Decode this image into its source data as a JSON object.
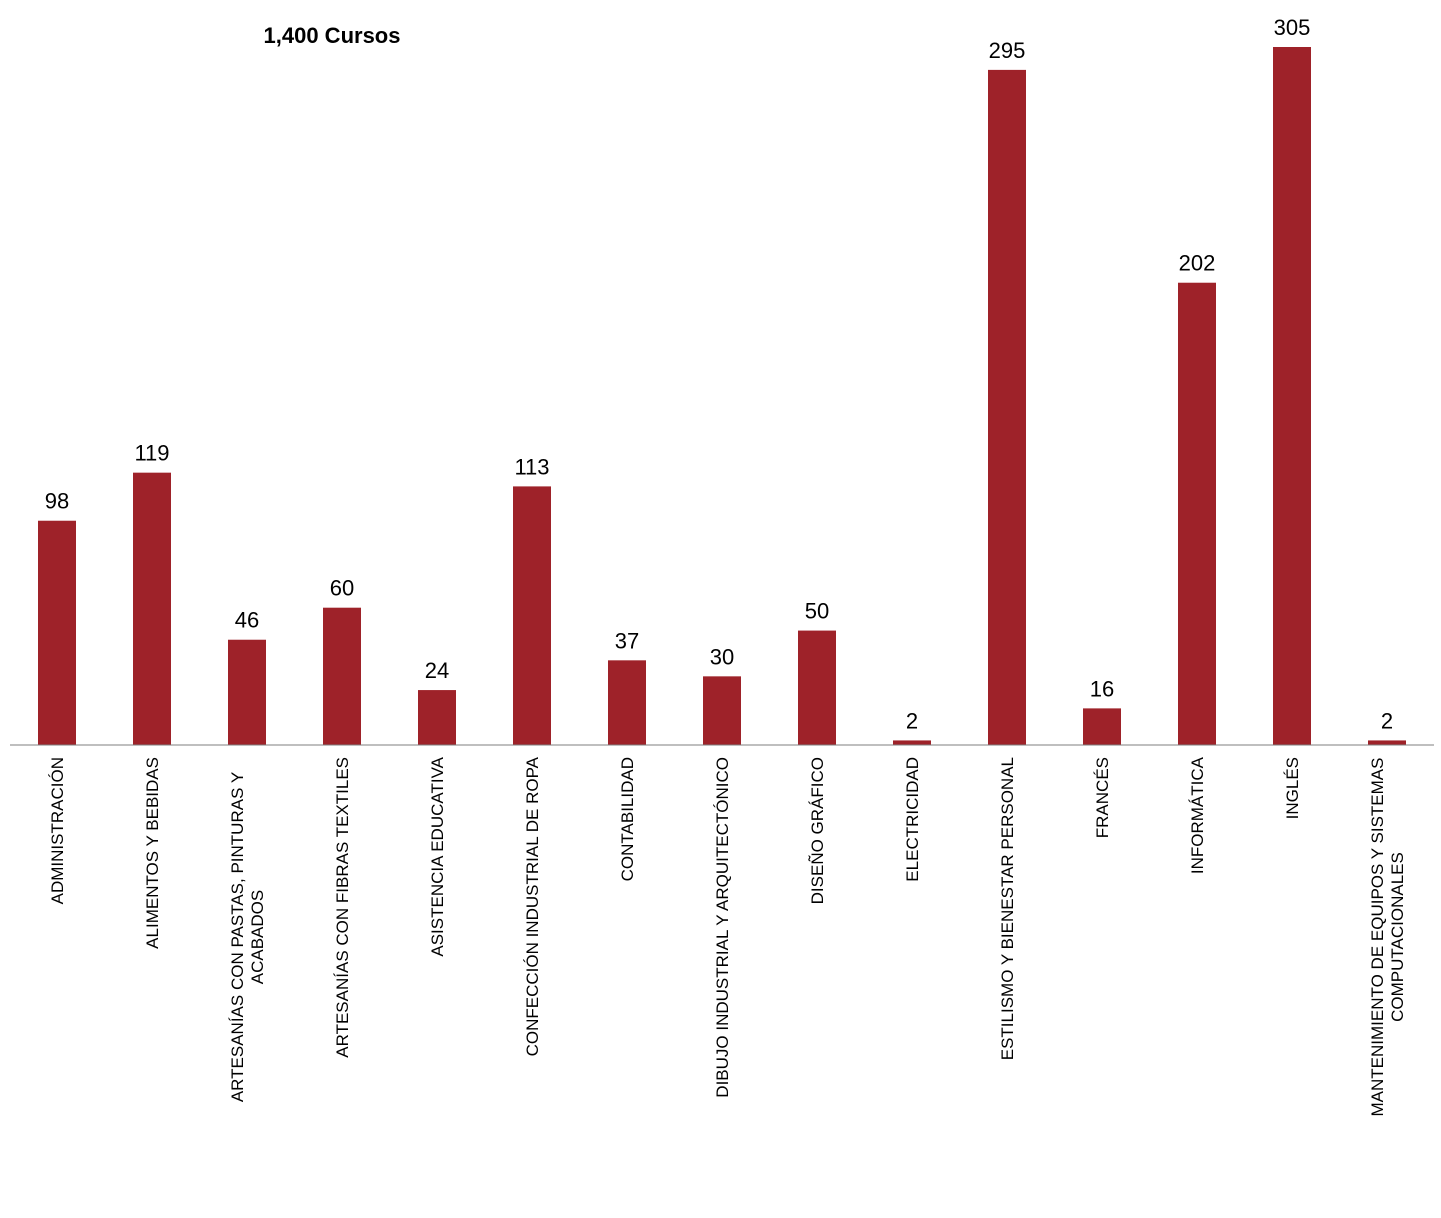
{
  "chart_data": {
    "type": "bar",
    "title": "",
    "xlabel": "",
    "ylabel": "",
    "annotation": "1,400 Cursos",
    "bar_color": "#9e2229",
    "ylim": [
      0,
      320
    ],
    "grid": false,
    "categories": [
      "ADMINISTRACIÓN",
      "ALIMENTOS Y BEBIDAS",
      "ARTESANÍAS CON PASTAS, PINTURAS Y ACABADOS",
      "ARTESANÍAS CON FIBRAS TEXTILES",
      "ASISTENCIA EDUCATIVA",
      "CONFECCIÓN INDUSTRIAL DE ROPA",
      "CONTABILIDAD",
      "DIBUJO INDUSTRIAL Y ARQUITECTÓNICO",
      "DISEÑO GRÁFICO",
      "ELECTRICIDAD",
      "ESTILISMO Y BIENESTAR PERSONAL",
      "FRANCÉS",
      "INFORMÁTICA",
      "INGLÉS",
      "MANTENIMIENTO DE EQUIPOS Y SISTEMAS COMPUTACIONALES"
    ],
    "values": [
      98,
      119,
      46,
      60,
      24,
      113,
      37,
      30,
      50,
      2,
      295,
      16,
      202,
      305,
      2
    ]
  }
}
